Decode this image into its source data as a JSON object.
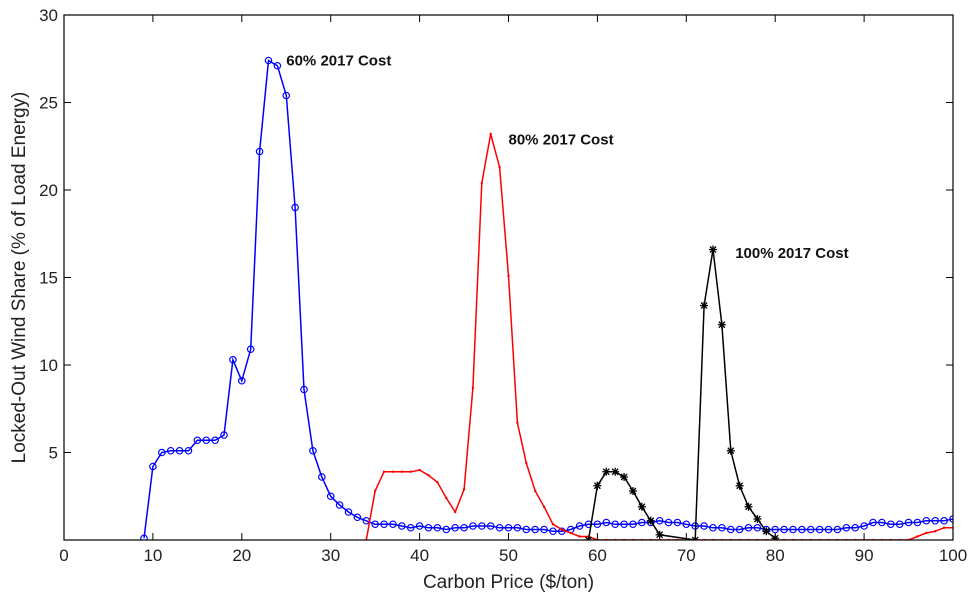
{
  "chart_data": {
    "type": "line",
    "xlabel": "Carbon Price ($/ton)",
    "ylabel": "Locked-Out Wind Share (% of Load Energy)",
    "xlim": [
      0,
      100
    ],
    "ylim": [
      0,
      30
    ],
    "xticks": [
      0,
      10,
      20,
      30,
      40,
      50,
      60,
      70,
      80,
      90,
      100
    ],
    "yticks": [
      5,
      10,
      15,
      20,
      25,
      30
    ],
    "grid": false,
    "series": [
      {
        "name": "60% 2017 Cost",
        "color": "#0000ff",
        "marker": "circle",
        "x": [
          9,
          10,
          11,
          12,
          13,
          14,
          15,
          16,
          17,
          18,
          19,
          20,
          21,
          22,
          23,
          24,
          25,
          26,
          27,
          28,
          29,
          30,
          31,
          32,
          33,
          34,
          35,
          36,
          37,
          38,
          39,
          40,
          41,
          42,
          43,
          44,
          45,
          46,
          47,
          48,
          49,
          50,
          51,
          52,
          53,
          54,
          55,
          56,
          57,
          58,
          59,
          60,
          61,
          62,
          63,
          64,
          65,
          66,
          67,
          68,
          69,
          70,
          71,
          72,
          73,
          74,
          75,
          76,
          77,
          78,
          79,
          80,
          81,
          82,
          83,
          84,
          85,
          86,
          87,
          88,
          89,
          90,
          91,
          92,
          93,
          94,
          95,
          96,
          97,
          98,
          99,
          100
        ],
        "y": [
          0.1,
          4.2,
          5.0,
          5.1,
          5.1,
          5.1,
          5.7,
          5.7,
          5.7,
          6.0,
          10.3,
          9.1,
          10.9,
          22.2,
          27.4,
          27.1,
          25.4,
          19.0,
          8.6,
          5.1,
          3.6,
          2.5,
          2.0,
          1.6,
          1.3,
          1.1,
          0.9,
          0.9,
          0.9,
          0.8,
          0.7,
          0.8,
          0.7,
          0.7,
          0.6,
          0.7,
          0.7,
          0.8,
          0.8,
          0.8,
          0.7,
          0.7,
          0.7,
          0.6,
          0.6,
          0.6,
          0.5,
          0.5,
          0.6,
          0.8,
          0.9,
          0.9,
          1.0,
          0.9,
          0.9,
          0.9,
          1.0,
          1.0,
          1.1,
          1.0,
          1.0,
          0.9,
          0.8,
          0.8,
          0.7,
          0.7,
          0.6,
          0.6,
          0.7,
          0.7,
          0.6,
          0.6,
          0.6,
          0.6,
          0.6,
          0.6,
          0.6,
          0.6,
          0.6,
          0.7,
          0.7,
          0.8,
          1.0,
          1.0,
          0.9,
          0.9,
          1.0,
          1.0,
          1.1,
          1.1,
          1.1,
          1.2
        ]
      },
      {
        "name": "80% 2017 Cost",
        "color": "#ff0000",
        "marker": "point",
        "x": [
          34,
          35,
          36,
          37,
          38,
          39,
          40,
          41,
          42,
          43,
          44,
          45,
          46,
          47,
          48,
          49,
          50,
          51,
          52,
          53,
          54,
          55,
          56,
          57,
          58,
          59,
          60,
          61,
          62,
          63,
          64,
          65,
          66,
          67,
          68,
          69,
          70,
          71,
          72,
          73,
          74,
          75,
          76,
          77,
          78,
          79,
          80,
          81,
          82,
          83,
          84,
          85,
          86,
          87,
          88,
          89,
          90,
          91,
          92,
          93,
          94,
          95,
          96,
          97,
          98,
          99,
          100
        ],
        "y": [
          0,
          2.8,
          3.9,
          3.9,
          3.9,
          3.9,
          4.0,
          3.7,
          3.3,
          2.4,
          1.6,
          2.9,
          8.7,
          20.4,
          23.2,
          21.3,
          15.1,
          6.7,
          4.4,
          2.8,
          1.9,
          0.9,
          0.6,
          0.4,
          0.2,
          0.2,
          0,
          0,
          0,
          0,
          0,
          0,
          0,
          0,
          0,
          0,
          0,
          0,
          0,
          0,
          0,
          0,
          0,
          0,
          0,
          0,
          0,
          0,
          0,
          0,
          0,
          0,
          0,
          0,
          0,
          0,
          0,
          0,
          0,
          0,
          0,
          0,
          0.2,
          0.4,
          0.5,
          0.7,
          0.7
        ]
      },
      {
        "name": "100% 2017 Cost",
        "color": "#000000",
        "marker": "star",
        "x": [
          59,
          60,
          61,
          62,
          63,
          64,
          65,
          66,
          67,
          71,
          72,
          73,
          74,
          75,
          76,
          77,
          78,
          79,
          80
        ],
        "y": [
          0,
          3.1,
          3.9,
          3.9,
          3.6,
          2.8,
          1.9,
          1.1,
          0.3,
          0,
          13.4,
          16.6,
          12.3,
          5.1,
          3.1,
          1.9,
          1.2,
          0.5,
          0.1
        ]
      }
    ],
    "annotations": [
      {
        "text": "60% 2017 Cost",
        "x": 25.0,
        "y": 27.0
      },
      {
        "text": "80% 2017 Cost",
        "x": 50.0,
        "y": 22.5
      },
      {
        "text": "100% 2017 Cost",
        "x": 75.5,
        "y": 16.0
      }
    ]
  }
}
